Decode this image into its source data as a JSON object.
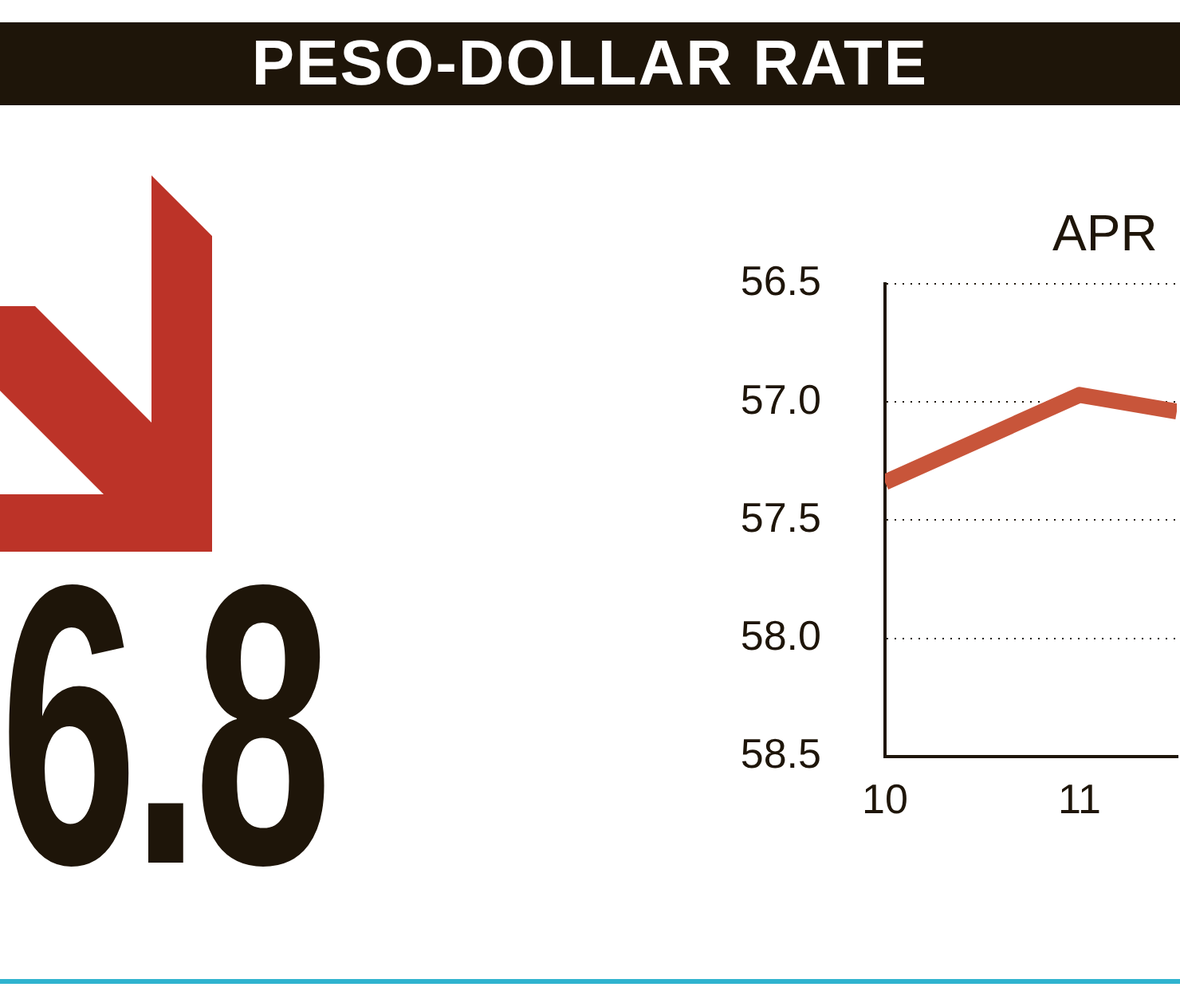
{
  "chart_data": {
    "type": "line",
    "title": "PESO-DOLLAR RATE",
    "annotations": [
      "APR",
      "6.8"
    ],
    "x": [
      10,
      11,
      11.5
    ],
    "series": [
      {
        "color": "#c8553a",
        "values": [
          57.34,
          56.97,
          57.04
        ]
      }
    ],
    "xlim": [
      10,
      11.5
    ],
    "xticks": [
      10,
      11
    ],
    "ylim": [
      58.5,
      56.5
    ],
    "yticks": [
      {
        "value": 56.5,
        "label": "56.5"
      },
      {
        "value": 57,
        "label": "57.0"
      },
      {
        "value": 57.5,
        "label": "57.5"
      },
      {
        "value": 58,
        "label": "58.0"
      },
      {
        "value": 58.5,
        "label": "58.5"
      }
    ],
    "grid": "y",
    "legend": false,
    "marker": "none",
    "line_style": "solid"
  }
}
